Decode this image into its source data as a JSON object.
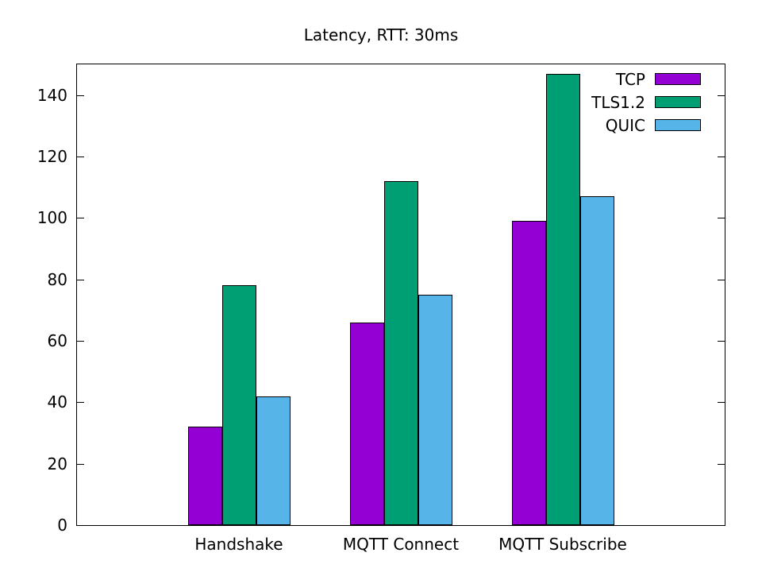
{
  "chart_data": {
    "type": "bar",
    "title": "Latency, RTT: 30ms",
    "categories": [
      "Handshake",
      "MQTT Connect",
      "MQTT Subscribe"
    ],
    "series": [
      {
        "name": "TCP",
        "color": "#9400d3",
        "values": [
          32,
          66,
          99
        ]
      },
      {
        "name": "TLS1.2",
        "color": "#009e73",
        "values": [
          78,
          112,
          147
        ]
      },
      {
        "name": "QUIC",
        "color": "#56b4e9",
        "values": [
          42,
          75,
          107
        ]
      }
    ],
    "xlabel": "",
    "ylabel": "",
    "ylim": [
      0,
      150
    ],
    "yticks": [
      0,
      20,
      40,
      60,
      80,
      100,
      120,
      140
    ],
    "grid": false,
    "legend_position": "top-right",
    "bar_border_color": "#000000",
    "axis_color": "#000000"
  }
}
